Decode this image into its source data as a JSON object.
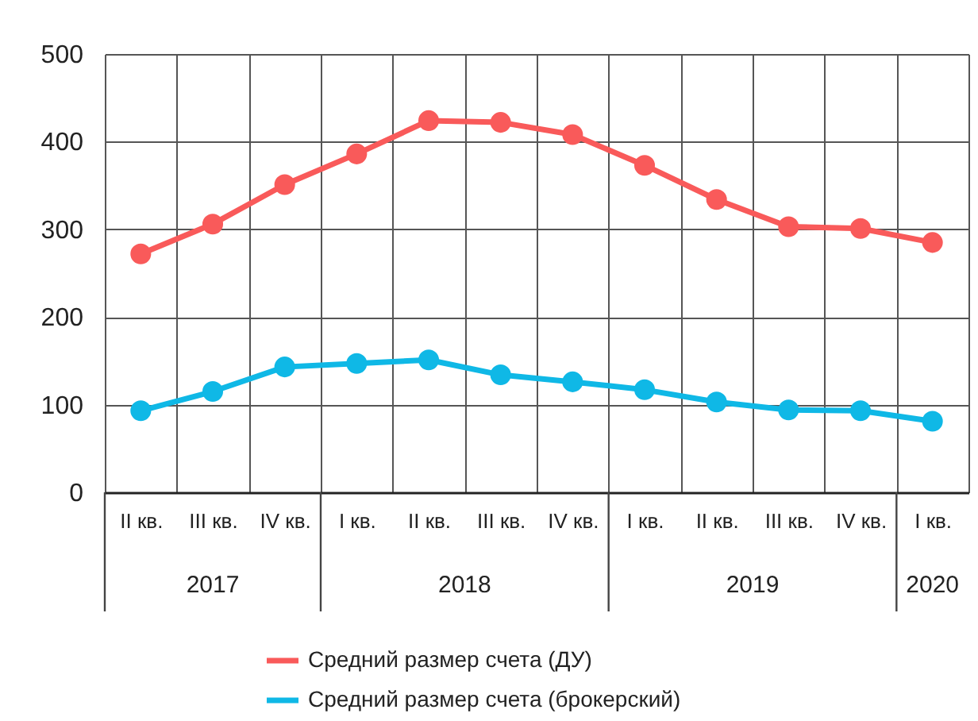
{
  "chart_data": {
    "type": "line",
    "categories": [
      "II кв.",
      "III кв.",
      "IV кв.",
      "I кв.",
      "II кв.",
      "III кв.",
      "IV кв.",
      "I кв.",
      "II кв.",
      "III кв.",
      "IV кв.",
      "I кв."
    ],
    "series": [
      {
        "name": "Средний размер счета (ДУ)",
        "color": "#f95a5a",
        "values": [
          272,
          306,
          351,
          386,
          424,
          422,
          408,
          373,
          334,
          303,
          301,
          285
        ]
      },
      {
        "name": "Средний размер счета (брокерский)",
        "color": "#0fb8e6",
        "values": [
          93,
          115,
          143,
          147,
          151,
          134,
          126,
          117,
          103,
          94,
          93,
          81
        ]
      }
    ],
    "ylim": [
      0,
      500
    ],
    "yticks": [
      0,
      100,
      200,
      300,
      400,
      500
    ],
    "annotations": [
      "2017",
      "2018",
      "2019",
      "2020"
    ],
    "grid": true,
    "legend": "bottom",
    "marker": "circle"
  }
}
